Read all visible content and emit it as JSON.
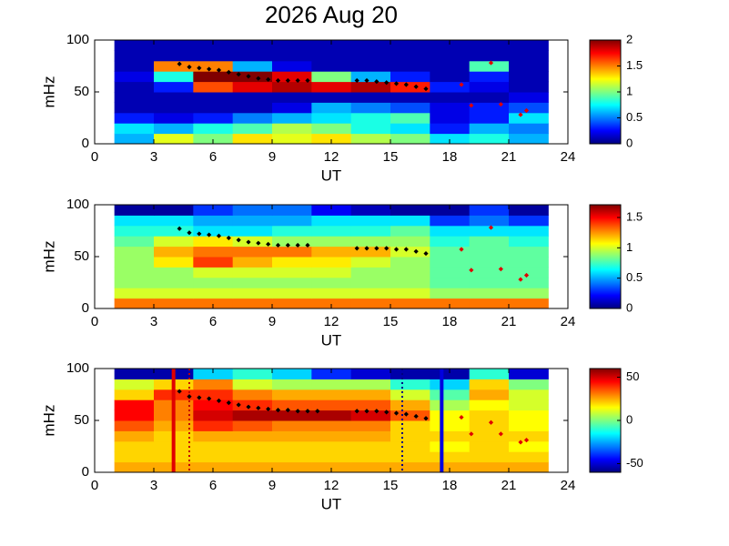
{
  "chart_data": [
    {
      "type": "heatmap",
      "title": "2026 Aug 20",
      "xlabel": "UT",
      "ylabel": "mHz",
      "xlim": [
        0,
        24
      ],
      "xticks": [
        0,
        3,
        6,
        9,
        12,
        15,
        18,
        21,
        24
      ],
      "ylim": [
        0,
        100
      ],
      "yticks": [
        0,
        50,
        100
      ],
      "xbins": [
        1,
        3,
        5,
        7,
        9,
        11,
        13,
        15,
        17,
        19,
        21,
        23
      ],
      "ybins": [
        0,
        10,
        20,
        30,
        40,
        50,
        60,
        70,
        80,
        90,
        100
      ],
      "colormap": "jet",
      "clim": [
        0,
        2
      ],
      "cticks": [
        0,
        0.5,
        1,
        1.5,
        2
      ],
      "z": [
        [
          0.6,
          1.2,
          1.0,
          1.3,
          1.2,
          1.3,
          1.1,
          1.0,
          0.7,
          0.8,
          0.6
        ],
        [
          0.7,
          0.6,
          0.8,
          0.9,
          1.1,
          1.0,
          0.8,
          0.7,
          0.3,
          0.6,
          0.5
        ],
        [
          0.3,
          0.2,
          0.3,
          0.5,
          0.6,
          0.7,
          0.8,
          0.9,
          0.2,
          0.3,
          0.7
        ],
        [
          0.1,
          0.1,
          0.1,
          0.1,
          0.2,
          0.6,
          0.5,
          0.4,
          0.2,
          0.3,
          0.4
        ],
        [
          0.1,
          0.1,
          0.1,
          0.1,
          0.1,
          0.1,
          0.1,
          0.1,
          0.1,
          0.1,
          0.2
        ],
        [
          0.1,
          0.3,
          1.6,
          1.8,
          1.9,
          1.8,
          1.9,
          1.7,
          0.3,
          0.2,
          0.1
        ],
        [
          0.2,
          0.8,
          2,
          2,
          1.8,
          1.0,
          0.6,
          0.3,
          0.1,
          0.3,
          0.1
        ],
        [
          0.1,
          1.5,
          1.5,
          0.6,
          0.2,
          0.1,
          0.1,
          0.1,
          0.1,
          0.9,
          0.1
        ],
        [
          0.1,
          0.1,
          0.1,
          0.1,
          0.1,
          0.1,
          0.1,
          0.1,
          0.1,
          0.1,
          0.1
        ],
        [
          0.1,
          0.1,
          0.1,
          0.1,
          0.1,
          0.1,
          0.1,
          0.1,
          0.1,
          0.1,
          0.1
        ]
      ],
      "series": [
        {
          "color": "#000000",
          "x": [
            4.3,
            4.8,
            5.3,
            5.8,
            6.3,
            6.8,
            7.3,
            7.8,
            8.3,
            8.8,
            9.3,
            9.8,
            10.3,
            10.8,
            11.3,
            13.3,
            13.8,
            14.3,
            14.8,
            15.3,
            15.8,
            16.3,
            16.8
          ],
          "values": [
            77,
            74,
            73,
            72,
            71,
            69,
            67,
            65,
            63,
            62,
            61,
            61,
            61,
            61,
            null,
            61,
            61,
            60,
            59,
            58,
            57,
            55,
            53
          ]
        },
        {
          "color": "#e00000",
          "x": [
            18.6,
            19.1,
            20.1,
            20.6,
            21.6,
            21.9
          ],
          "values": [
            57,
            37,
            78,
            38,
            28,
            32
          ]
        }
      ]
    },
    {
      "type": "heatmap",
      "xlabel": "UT",
      "ylabel": "mHz",
      "xlim": [
        0,
        24
      ],
      "xticks": [
        0,
        3,
        6,
        9,
        12,
        15,
        18,
        21,
        24
      ],
      "ylim": [
        0,
        100
      ],
      "yticks": [
        0,
        50,
        100
      ],
      "xbins": [
        1,
        3,
        5,
        7,
        9,
        11,
        13,
        15,
        17,
        19,
        21,
        23
      ],
      "ybins": [
        0,
        10,
        20,
        30,
        40,
        50,
        60,
        70,
        80,
        90,
        100
      ],
      "colormap": "jet",
      "clim": [
        0,
        1.71
      ],
      "cticks": [
        0,
        0.5,
        1,
        1.5
      ],
      "z": [
        [
          1.3,
          1.3,
          1.3,
          1.3,
          1.3,
          1.3,
          1.3,
          1.3,
          1.3,
          1.3,
          1.3
        ],
        [
          1.0,
          1.0,
          1.0,
          1.0,
          1.0,
          1.0,
          1.0,
          1.0,
          0.9,
          0.9,
          0.9
        ],
        [
          0.9,
          0.9,
          0.9,
          0.9,
          0.9,
          0.9,
          0.9,
          0.9,
          0.8,
          0.8,
          0.8
        ],
        [
          0.9,
          0.9,
          1.0,
          1.0,
          1.0,
          1.0,
          0.9,
          0.9,
          0.8,
          0.8,
          0.8
        ],
        [
          0.9,
          1.1,
          1.4,
          1.2,
          1.1,
          1.1,
          1.0,
          0.9,
          0.8,
          0.8,
          0.8
        ],
        [
          0.9,
          1.2,
          1.3,
          1.3,
          1.3,
          1.2,
          1.2,
          1.0,
          0.8,
          0.8,
          0.8
        ],
        [
          0.8,
          1.0,
          1.1,
          1.0,
          0.9,
          0.9,
          0.9,
          0.9,
          0.7,
          0.8,
          0.7
        ],
        [
          0.7,
          0.7,
          0.6,
          0.6,
          0.7,
          0.7,
          0.7,
          0.8,
          0.6,
          0.6,
          0.6
        ],
        [
          0.6,
          0.6,
          0.5,
          0.5,
          0.5,
          0.6,
          0.6,
          0.6,
          0.3,
          0.4,
          0.3
        ],
        [
          0.05,
          0.05,
          0.3,
          0.4,
          0.4,
          0.2,
          0.1,
          0.05,
          0.05,
          0.3,
          0.05
        ]
      ],
      "series": [
        {
          "color": "#000000",
          "x": [
            4.3,
            4.8,
            5.3,
            5.8,
            6.3,
            6.8,
            7.3,
            7.8,
            8.3,
            8.8,
            9.3,
            9.8,
            10.3,
            10.8,
            11.3,
            13.3,
            13.8,
            14.3,
            14.8,
            15.3,
            15.8,
            16.3,
            16.8
          ],
          "values": [
            77,
            73,
            72,
            71,
            70,
            68,
            66,
            64,
            63,
            62,
            61,
            61,
            61,
            61,
            null,
            58,
            58,
            58,
            58,
            57,
            57,
            55,
            53
          ]
        },
        {
          "color": "#e00000",
          "x": [
            18.6,
            19.1,
            20.1,
            20.6,
            21.6,
            21.9
          ],
          "values": [
            57,
            37,
            78,
            38,
            28,
            32
          ]
        }
      ]
    },
    {
      "type": "heatmap",
      "xlabel": "UT",
      "ylabel": "mHz",
      "xlim": [
        0,
        24
      ],
      "xticks": [
        0,
        3,
        6,
        9,
        12,
        15,
        18,
        21,
        24
      ],
      "ylim": [
        0,
        100
      ],
      "yticks": [
        0,
        50,
        100
      ],
      "xbins": [
        1,
        3,
        5,
        7,
        9,
        11,
        13,
        15,
        17,
        19,
        21,
        23
      ],
      "ybins": [
        0,
        10,
        20,
        30,
        40,
        50,
        60,
        70,
        80,
        90,
        100
      ],
      "colormap": "jet",
      "clim": [
        -60,
        60
      ],
      "cticks": [
        -50,
        0,
        50
      ],
      "z": [
        [
          25,
          25,
          25,
          25,
          25,
          25,
          25,
          25,
          25,
          25,
          25
        ],
        [
          20,
          20,
          20,
          20,
          20,
          20,
          20,
          20,
          20,
          20,
          20
        ],
        [
          20,
          20,
          20,
          20,
          20,
          20,
          20,
          20,
          15,
          20,
          15
        ],
        [
          25,
          20,
          25,
          25,
          25,
          25,
          25,
          20,
          20,
          20,
          20
        ],
        [
          35,
          25,
          40,
          35,
          30,
          30,
          30,
          20,
          15,
          20,
          15
        ],
        [
          45,
          30,
          50,
          55,
          55,
          55,
          50,
          35,
          15,
          20,
          15
        ],
        [
          45,
          30,
          45,
          40,
          35,
          35,
          35,
          25,
          5,
          15,
          10
        ],
        [
          20,
          40,
          40,
          30,
          25,
          25,
          25,
          10,
          -5,
          25,
          10
        ],
        [
          10,
          20,
          30,
          10,
          5,
          5,
          5,
          -10,
          -20,
          20,
          0
        ],
        [
          -55,
          -55,
          -20,
          -10,
          -20,
          -40,
          -50,
          -55,
          -55,
          -10,
          -50
        ]
      ],
      "series": [
        {
          "color": "#000000",
          "x": [
            4.3,
            4.8,
            5.3,
            5.8,
            6.3,
            6.8,
            7.3,
            7.8,
            8.3,
            8.8,
            9.3,
            9.8,
            10.3,
            10.8,
            11.3,
            13.3,
            13.8,
            14.3,
            14.8,
            15.3,
            15.8,
            16.3,
            16.8
          ],
          "values": [
            78,
            73,
            72,
            71,
            69,
            67,
            65,
            63,
            62,
            61,
            60,
            60,
            59,
            59,
            59,
            59,
            59,
            59,
            58,
            57,
            56,
            54,
            52
          ]
        },
        {
          "color": "#e00000",
          "x": [
            18.6,
            19.1,
            20.1,
            20.6,
            21.6,
            21.9
          ],
          "values": [
            53,
            37,
            48,
            37,
            29,
            31
          ]
        }
      ],
      "vlines": [
        {
          "x": 4,
          "color": "#e00000",
          "style": "solid"
        },
        {
          "x": 4.8,
          "color": "#c00000",
          "style": "dotted"
        },
        {
          "x": 15.6,
          "color": "#000080",
          "style": "dotted"
        },
        {
          "x": 17.6,
          "color": "#0000e0",
          "style": "solid"
        }
      ]
    }
  ]
}
